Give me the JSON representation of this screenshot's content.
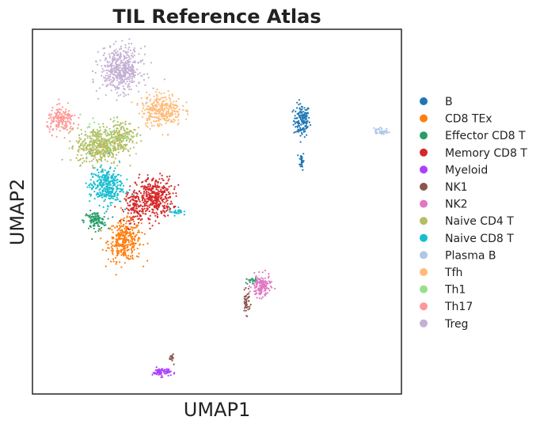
{
  "chart_data": {
    "type": "scatter",
    "title": "TIL Reference Atlas",
    "xlabel": "UMAP1",
    "ylabel": "UMAP2",
    "xlim": [
      0,
      10
    ],
    "ylim": [
      0,
      10
    ],
    "grid": false,
    "ticks": false,
    "legend_position": "right",
    "series": [
      {
        "name": "B",
        "color": "#1f77b4",
        "clusters": [
          {
            "cx": 7.3,
            "cy": 7.5,
            "rx": 0.22,
            "ry": 0.45,
            "n": 150
          },
          {
            "cx": 7.3,
            "cy": 6.4,
            "rx": 0.06,
            "ry": 0.25,
            "n": 30
          }
        ]
      },
      {
        "name": "CD8 TEx",
        "color": "#ff7f0e",
        "clusters": [
          {
            "cx": 2.5,
            "cy": 4.2,
            "rx": 0.45,
            "ry": 0.55,
            "n": 330
          }
        ]
      },
      {
        "name": "Effector CD8 T",
        "color": "#279e68",
        "clusters": [
          {
            "cx": 1.7,
            "cy": 4.75,
            "rx": 0.3,
            "ry": 0.25,
            "n": 110
          },
          {
            "cx": 6.0,
            "cy": 3.1,
            "rx": 0.25,
            "ry": 0.1,
            "n": 30
          }
        ]
      },
      {
        "name": "Memory CD8 T",
        "color": "#d62728",
        "clusters": [
          {
            "cx": 3.3,
            "cy": 5.4,
            "rx": 0.5,
            "ry": 0.55,
            "n": 380
          },
          {
            "cx": 2.8,
            "cy": 5.1,
            "rx": 0.3,
            "ry": 0.4,
            "n": 120
          }
        ]
      },
      {
        "name": "Myeloid",
        "color": "#aa40fc",
        "clusters": [
          {
            "cx": 3.5,
            "cy": 0.6,
            "rx": 0.25,
            "ry": 0.12,
            "n": 70
          }
        ]
      },
      {
        "name": "NK1",
        "color": "#8c564b",
        "clusters": [
          {
            "cx": 5.8,
            "cy": 2.5,
            "rx": 0.1,
            "ry": 0.3,
            "n": 45
          },
          {
            "cx": 3.8,
            "cy": 1.0,
            "rx": 0.06,
            "ry": 0.15,
            "n": 15
          }
        ]
      },
      {
        "name": "NK2",
        "color": "#e377c2",
        "clusters": [
          {
            "cx": 6.2,
            "cy": 2.95,
            "rx": 0.25,
            "ry": 0.3,
            "n": 140
          }
        ]
      },
      {
        "name": "Naive CD4 T",
        "color": "#b5bd61",
        "clusters": [
          {
            "cx": 1.8,
            "cy": 6.8,
            "rx": 0.6,
            "ry": 0.5,
            "n": 420
          },
          {
            "cx": 2.4,
            "cy": 7.1,
            "rx": 0.4,
            "ry": 0.4,
            "n": 160
          }
        ]
      },
      {
        "name": "Naive CD8 T",
        "color": "#17becf",
        "clusters": [
          {
            "cx": 2.0,
            "cy": 5.7,
            "rx": 0.45,
            "ry": 0.5,
            "n": 330
          },
          {
            "cx": 3.9,
            "cy": 5.0,
            "rx": 0.18,
            "ry": 0.1,
            "n": 25
          }
        ]
      },
      {
        "name": "Plasma B",
        "color": "#aec7e8",
        "clusters": [
          {
            "cx": 9.45,
            "cy": 7.2,
            "rx": 0.2,
            "ry": 0.1,
            "n": 45
          }
        ]
      },
      {
        "name": "Tfh",
        "color": "#ffbb78",
        "clusters": [
          {
            "cx": 3.5,
            "cy": 7.8,
            "rx": 0.55,
            "ry": 0.45,
            "n": 300
          }
        ]
      },
      {
        "name": "Th1",
        "color": "#98df8a",
        "clusters": [
          {
            "cx": 2.0,
            "cy": 7.0,
            "rx": 0.7,
            "ry": 0.6,
            "n": 60
          }
        ]
      },
      {
        "name": "Th17",
        "color": "#ff9896",
        "clusters": [
          {
            "cx": 0.8,
            "cy": 7.5,
            "rx": 0.4,
            "ry": 0.35,
            "n": 170
          }
        ]
      },
      {
        "name": "Treg",
        "color": "#c5b0d5",
        "clusters": [
          {
            "cx": 2.4,
            "cy": 8.9,
            "rx": 0.55,
            "ry": 0.6,
            "n": 480
          }
        ]
      }
    ]
  }
}
